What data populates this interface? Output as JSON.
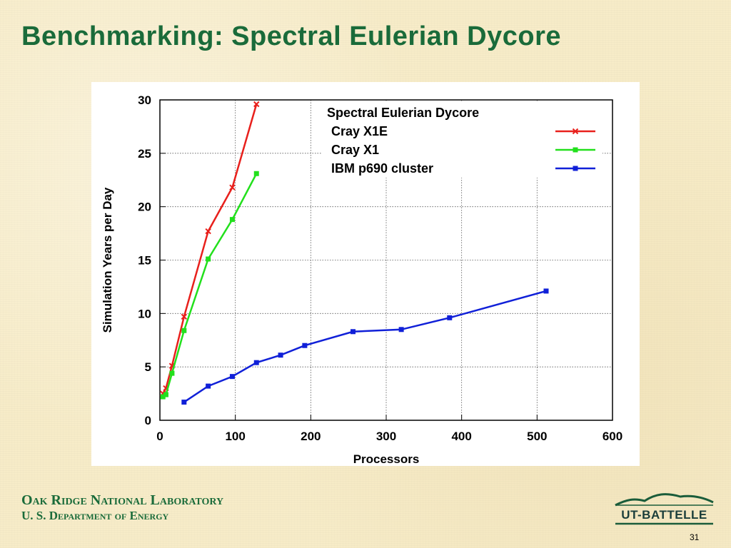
{
  "slide": {
    "title": "Benchmarking: Spectral Eulerian Dycore",
    "footer_line1": "Oak Ridge National Laboratory",
    "footer_line2": "U. S. Department of Energy",
    "logo_text": "UT-BATTELLE",
    "page_number": "31"
  },
  "chart_data": {
    "type": "line",
    "title": "",
    "xlabel": "Processors",
    "ylabel": "Simulation Years per Day",
    "xlim": [
      0,
      600
    ],
    "ylim": [
      0,
      30
    ],
    "xticks": [
      0,
      100,
      200,
      300,
      400,
      500,
      600
    ],
    "yticks": [
      0,
      5,
      10,
      15,
      20,
      25,
      30
    ],
    "grid": true,
    "legend_title": "Spectral Eulerian Dycore",
    "legend_position": "top-right",
    "series": [
      {
        "name": "Cray X1E",
        "color": "#e8201c",
        "marker": "x",
        "x": [
          4,
          8,
          16,
          32,
          64,
          96,
          128
        ],
        "y": [
          2.5,
          3.0,
          5.1,
          9.7,
          17.7,
          21.8,
          29.6
        ]
      },
      {
        "name": "Cray X1",
        "color": "#22e01c",
        "marker": "square",
        "x": [
          4,
          8,
          16,
          32,
          64,
          96,
          128
        ],
        "y": [
          2.2,
          2.4,
          4.4,
          8.4,
          15.1,
          18.8,
          23.1
        ]
      },
      {
        "name": "IBM p690 cluster",
        "color": "#1020d8",
        "marker": "square",
        "x": [
          32,
          64,
          96,
          128,
          160,
          192,
          256,
          320,
          384,
          512
        ],
        "y": [
          1.7,
          3.2,
          4.1,
          5.4,
          6.1,
          7.0,
          8.3,
          8.5,
          9.6,
          12.1
        ]
      }
    ]
  }
}
